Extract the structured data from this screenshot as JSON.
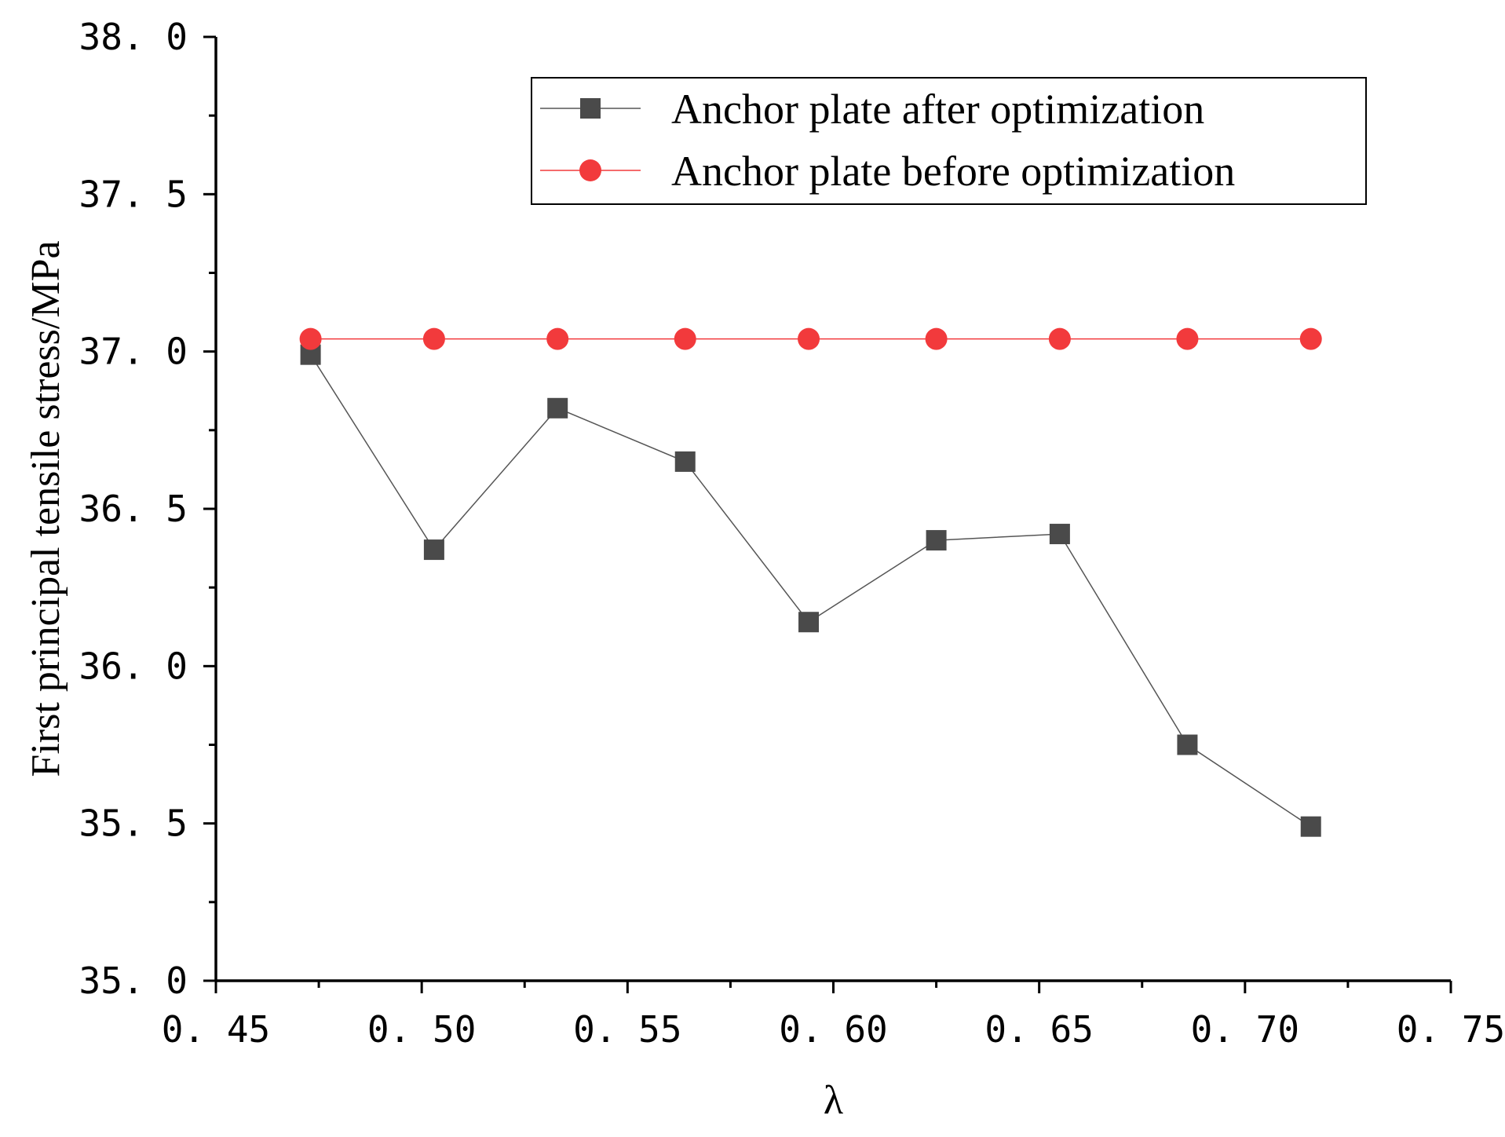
{
  "chart_data": {
    "type": "line",
    "title": "",
    "xlabel": "λ",
    "ylabel": "First principal tensile stress/MPa",
    "xlim": [
      0.45,
      0.75
    ],
    "ylim": [
      35.0,
      38.0
    ],
    "x_ticks": [
      0.45,
      0.5,
      0.55,
      0.6,
      0.65,
      0.7,
      0.75
    ],
    "x_tick_labels": [
      "0. 45",
      "0. 50",
      "0. 55",
      "0. 60",
      "0. 65",
      "0. 70",
      "0. 75"
    ],
    "y_ticks": [
      35.0,
      35.5,
      36.0,
      36.5,
      37.0,
      37.5,
      38.0
    ],
    "y_tick_labels": [
      "35. 0",
      "35. 5",
      "36. 0",
      "36. 5",
      "37. 0",
      "37. 5",
      "38. 0"
    ],
    "grid": false,
    "legend_position": "top-right",
    "series": [
      {
        "name": "Anchor plate after optimization",
        "marker": "square",
        "color": "#4a4a4a",
        "line_color": "#555555",
        "x": [
          0.473,
          0.503,
          0.533,
          0.564,
          0.594,
          0.625,
          0.655,
          0.686,
          0.716
        ],
        "y": [
          36.99,
          36.37,
          36.82,
          36.65,
          36.14,
          36.4,
          36.42,
          35.75,
          35.49
        ]
      },
      {
        "name": "Anchor plate before optimization",
        "marker": "circle",
        "color": "#f23a3c",
        "line_color": "#f23a3c",
        "x": [
          0.473,
          0.503,
          0.533,
          0.564,
          0.594,
          0.625,
          0.655,
          0.686,
          0.716
        ],
        "y": [
          37.04,
          37.04,
          37.04,
          37.04,
          37.04,
          37.04,
          37.04,
          37.04,
          37.04
        ]
      }
    ]
  }
}
